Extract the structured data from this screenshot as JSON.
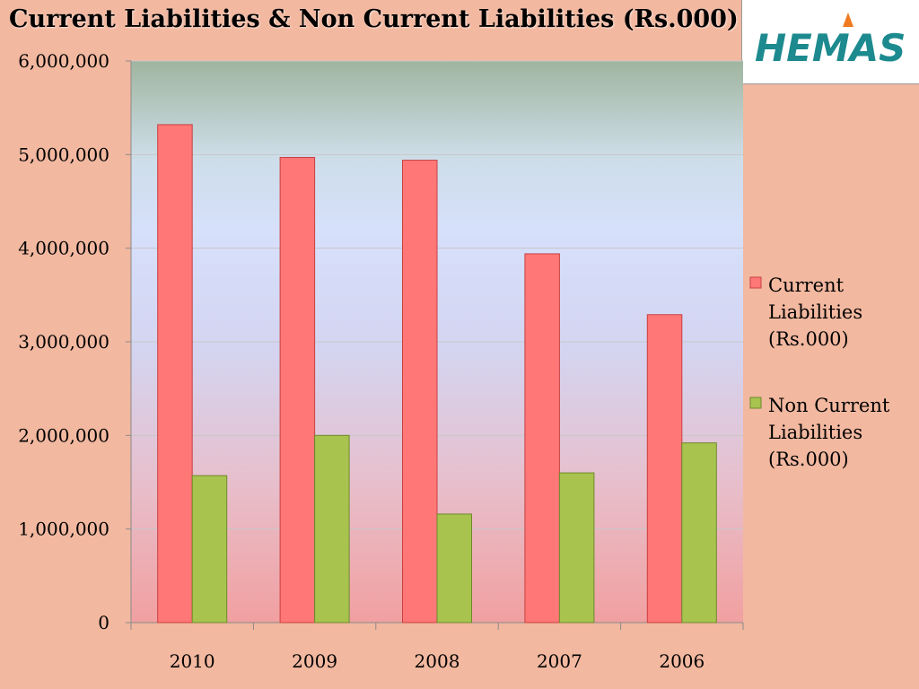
{
  "chart_data": {
    "type": "bar",
    "title": "Current Liabilities & Non Current Liabilities (Rs.000)",
    "categories": [
      "2010",
      "2009",
      "2008",
      "2007",
      "2006"
    ],
    "series": [
      {
        "name": "Current Liabilities (Rs.000)",
        "legend_lines": [
          "Current",
          "Liabilities",
          "(Rs.000)"
        ],
        "color": "#ff7777",
        "values": [
          5320000,
          4970000,
          4940000,
          3940000,
          3290000
        ]
      },
      {
        "name": "Non Current Liabilities (Rs.000)",
        "legend_lines": [
          "Non Current",
          "Liabilities",
          "(Rs.000)"
        ],
        "color": "#a8c34e",
        "values": [
          1570000,
          2000000,
          1160000,
          1600000,
          1920000
        ]
      }
    ],
    "y_ticks": [
      "0",
      "1,000,000",
      "2,000,000",
      "3,000,000",
      "4,000,000",
      "5,000,000",
      "6,000,000"
    ],
    "ylim": [
      0,
      6000000
    ],
    "grid": true,
    "legend_position": "right"
  },
  "logo": {
    "text": "HEMAS",
    "color": "#1c8a8e",
    "accent": "#f07a20"
  }
}
